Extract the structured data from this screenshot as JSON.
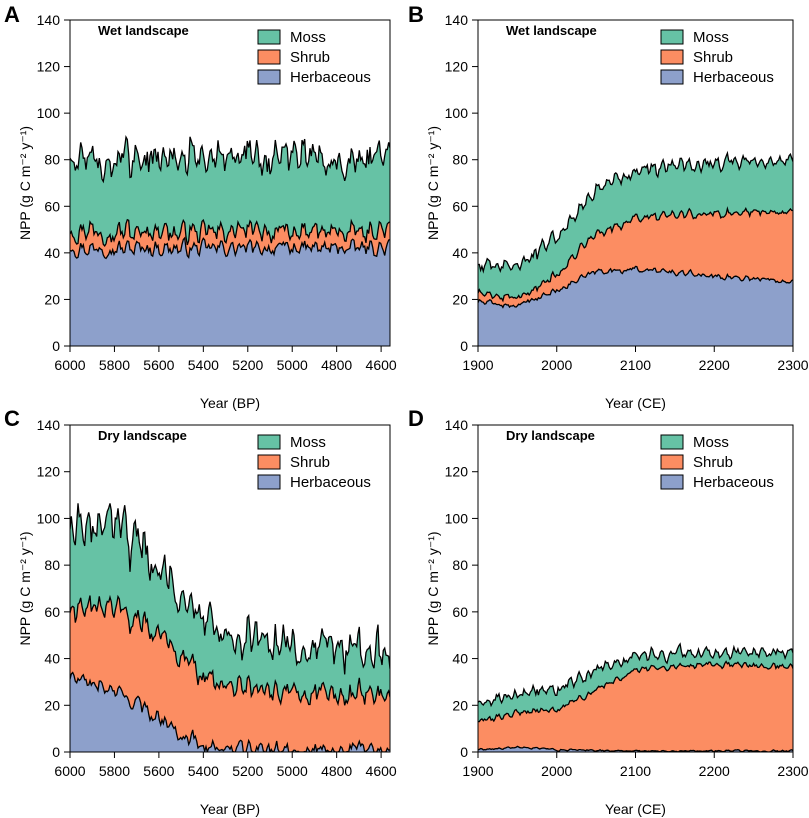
{
  "colors": {
    "moss": "#66c2a5",
    "shrub": "#fc8d62",
    "herbaceous": "#8da0cb",
    "outline": "#000000"
  },
  "chart_data": [
    {
      "type": "area",
      "panel": "A",
      "title": "Wet landscape",
      "xlabel": "Year (BP)",
      "ylabel": "NPP (g C m⁻² y⁻¹)",
      "xlim": [
        6000,
        4560
      ],
      "x_reversed": true,
      "ylim": [
        0,
        140
      ],
      "xticks": [
        6000,
        5800,
        5600,
        5400,
        5200,
        5000,
        4800,
        4600
      ],
      "yticks": [
        0,
        20,
        40,
        60,
        80,
        100,
        120,
        140
      ],
      "legend": [
        "Moss",
        "Shrub",
        "Herbaceous"
      ],
      "legend_position": "top-right",
      "series": [
        {
          "name": "Herbaceous",
          "mean": 42,
          "amp": 4,
          "trend": [
            [
              6000,
              42
            ],
            [
              4560,
              42
            ]
          ]
        },
        {
          "name": "Shrub",
          "mean": 7,
          "amp": 3,
          "trend": [
            [
              6000,
              7
            ],
            [
              4560,
              7
            ]
          ]
        },
        {
          "name": "Moss",
          "mean": 32,
          "amp": 7,
          "trend": [
            [
              6000,
              32
            ],
            [
              4560,
              32
            ]
          ]
        }
      ]
    },
    {
      "type": "area",
      "panel": "B",
      "title": "Wet landscape",
      "xlabel": "Year (CE)",
      "ylabel": "NPP (g C m⁻² y⁻¹)",
      "xlim": [
        1900,
        2300
      ],
      "x_reversed": false,
      "ylim": [
        0,
        140
      ],
      "xticks": [
        1900,
        2000,
        2100,
        2200,
        2300
      ],
      "yticks": [
        0,
        20,
        40,
        60,
        80,
        100,
        120,
        140
      ],
      "legend": [
        "Moss",
        "Shrub",
        "Herbaceous"
      ],
      "legend_position": "top-right",
      "series": [
        {
          "name": "Herbaceous",
          "amp": 1.5,
          "trend": [
            [
              1900,
              19
            ],
            [
              1950,
              17
            ],
            [
              2000,
              24
            ],
            [
              2050,
              32
            ],
            [
              2100,
              33
            ],
            [
              2200,
              30
            ],
            [
              2300,
              28
            ]
          ]
        },
        {
          "name": "Shrub",
          "amp": 1.5,
          "trend": [
            [
              1900,
              4
            ],
            [
              1950,
              3
            ],
            [
              2000,
              7
            ],
            [
              2050,
              16
            ],
            [
              2100,
              22
            ],
            [
              2200,
              27
            ],
            [
              2300,
              30
            ]
          ]
        },
        {
          "name": "Moss",
          "amp": 3,
          "trend": [
            [
              1900,
              12
            ],
            [
              1950,
              14
            ],
            [
              2000,
              17
            ],
            [
              2050,
              19
            ],
            [
              2100,
              20
            ],
            [
              2200,
              22
            ],
            [
              2300,
              22
            ]
          ]
        }
      ]
    },
    {
      "type": "area",
      "panel": "C",
      "title": "Dry landscape",
      "xlabel": "Year (BP)",
      "ylabel": "NPP (g C m⁻² y⁻¹)",
      "xlim": [
        6000,
        4560
      ],
      "x_reversed": true,
      "ylim": [
        0,
        140
      ],
      "xticks": [
        6000,
        5800,
        5600,
        5400,
        5200,
        5000,
        4800,
        4600
      ],
      "yticks": [
        0,
        20,
        40,
        60,
        80,
        100,
        120,
        140
      ],
      "legend": [
        "Moss",
        "Shrub",
        "Herbaceous"
      ],
      "legend_position": "top-right",
      "series": [
        {
          "name": "Herbaceous",
          "amp": 4,
          "trend": [
            [
              6000,
              32
            ],
            [
              5800,
              26
            ],
            [
              5600,
              15
            ],
            [
              5500,
              8
            ],
            [
              5400,
              3
            ],
            [
              5300,
              1
            ],
            [
              4560,
              1
            ]
          ]
        },
        {
          "name": "Shrub",
          "amp": 5,
          "trend": [
            [
              6000,
              28
            ],
            [
              5800,
              35
            ],
            [
              5600,
              36
            ],
            [
              5500,
              33
            ],
            [
              5400,
              30
            ],
            [
              5300,
              26
            ],
            [
              5000,
              24
            ],
            [
              4560,
              24
            ]
          ]
        },
        {
          "name": "Moss",
          "amp": 8,
          "trend": [
            [
              6000,
              35
            ],
            [
              5800,
              36
            ],
            [
              5600,
              30
            ],
            [
              5500,
              27
            ],
            [
              5400,
              24
            ],
            [
              5300,
              21
            ],
            [
              5000,
              20
            ],
            [
              4560,
              20
            ]
          ]
        }
      ]
    },
    {
      "type": "area",
      "panel": "D",
      "title": "Dry landscape",
      "xlabel": "Year (CE)",
      "ylabel": "NPP (g C m⁻² y⁻¹)",
      "xlim": [
        1900,
        2300
      ],
      "x_reversed": false,
      "ylim": [
        0,
        140
      ],
      "xticks": [
        1900,
        2000,
        2100,
        2200,
        2300
      ],
      "yticks": [
        0,
        20,
        40,
        60,
        80,
        100,
        120,
        140
      ],
      "legend": [
        "Moss",
        "Shrub",
        "Herbaceous"
      ],
      "legend_position": "top-right",
      "series": [
        {
          "name": "Herbaceous",
          "amp": 0.5,
          "trend": [
            [
              1900,
              1
            ],
            [
              1950,
              2
            ],
            [
              2000,
              1
            ],
            [
              2100,
              0.5
            ],
            [
              2300,
              0.5
            ]
          ]
        },
        {
          "name": "Shrub",
          "amp": 1.5,
          "trend": [
            [
              1900,
              12
            ],
            [
              1950,
              15
            ],
            [
              2000,
              17
            ],
            [
              2050,
              26
            ],
            [
              2100,
              35
            ],
            [
              2200,
              37
            ],
            [
              2300,
              36
            ]
          ]
        },
        {
          "name": "Moss",
          "amp": 2.5,
          "trend": [
            [
              1900,
              8
            ],
            [
              1950,
              8
            ],
            [
              2000,
              9
            ],
            [
              2050,
              8
            ],
            [
              2100,
              6
            ],
            [
              2200,
              5
            ],
            [
              2300,
              6
            ]
          ]
        }
      ]
    }
  ]
}
